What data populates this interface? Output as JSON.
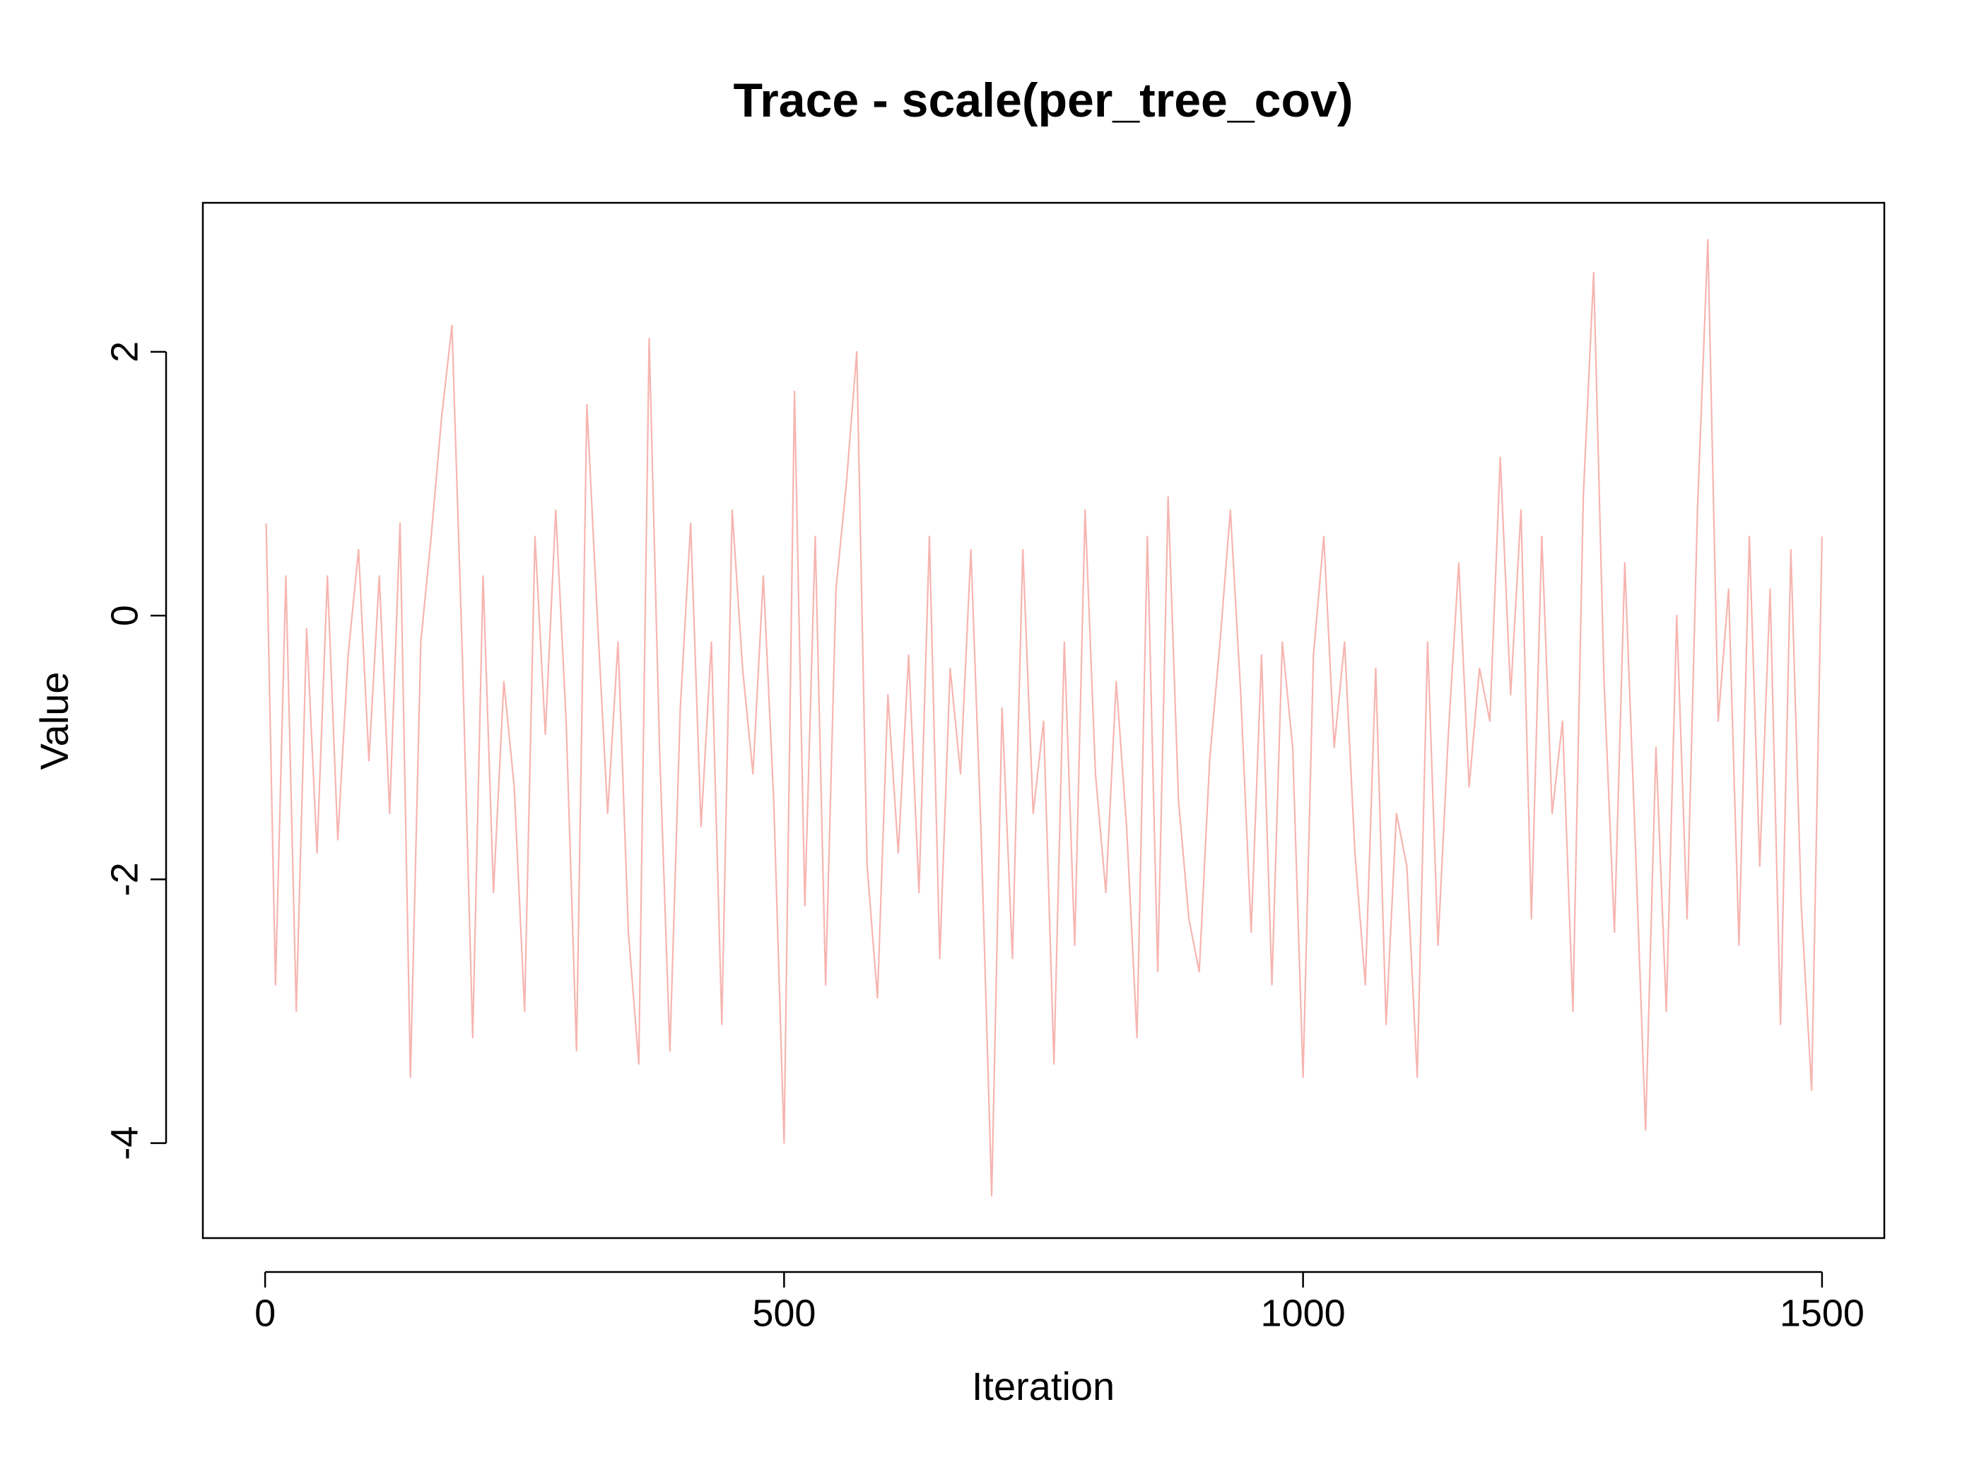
{
  "chart_data": {
    "type": "line",
    "title": "Trace - scale(per_tree_cov)",
    "x_label": "Iteration",
    "y_label": "Value",
    "x": [
      1,
      10,
      20,
      30,
      40,
      50,
      60,
      70,
      80,
      90,
      100,
      110,
      120,
      130,
      140,
      150,
      160,
      170,
      180,
      190,
      200,
      210,
      220,
      230,
      240,
      250,
      260,
      270,
      280,
      290,
      300,
      310,
      320,
      330,
      340,
      350,
      360,
      370,
      380,
      390,
      400,
      410,
      420,
      430,
      440,
      450,
      460,
      470,
      480,
      490,
      500,
      510,
      520,
      530,
      540,
      550,
      560,
      570,
      580,
      590,
      600,
      610,
      620,
      630,
      640,
      650,
      660,
      670,
      680,
      690,
      700,
      710,
      720,
      730,
      740,
      750,
      760,
      770,
      780,
      790,
      800,
      810,
      820,
      830,
      840,
      850,
      860,
      870,
      880,
      890,
      900,
      910,
      920,
      930,
      940,
      950,
      960,
      970,
      980,
      990,
      1000,
      1010,
      1020,
      1030,
      1040,
      1050,
      1060,
      1070,
      1080,
      1090,
      1100,
      1110,
      1120,
      1130,
      1140,
      1150,
      1160,
      1170,
      1180,
      1190,
      1200,
      1210,
      1220,
      1230,
      1240,
      1250,
      1260,
      1270,
      1280,
      1290,
      1300,
      1310,
      1320,
      1330,
      1340,
      1350,
      1360,
      1370,
      1380,
      1390,
      1400,
      1410,
      1420,
      1430,
      1440,
      1450,
      1460,
      1470,
      1480,
      1490,
      1500
    ],
    "series": [
      {
        "name": "scale(per_tree_cov)",
        "color": "#f6b5b0",
        "values": [
          0.7,
          -2.8,
          0.3,
          -3.0,
          -0.1,
          -1.8,
          0.3,
          -1.7,
          -0.3,
          0.5,
          -1.1,
          0.3,
          -1.5,
          0.7,
          -3.5,
          -0.2,
          0.6,
          1.5,
          2.2,
          -0.3,
          -3.2,
          0.3,
          -2.1,
          -0.5,
          -1.3,
          -3.0,
          0.6,
          -0.9,
          0.8,
          -0.8,
          -3.3,
          1.6,
          0.0,
          -1.5,
          -0.2,
          -2.4,
          -3.4,
          2.1,
          -1.0,
          -3.3,
          -0.7,
          0.7,
          -1.6,
          -0.2,
          -3.1,
          0.8,
          -0.4,
          -1.2,
          0.3,
          -1.4,
          -4.0,
          1.7,
          -2.2,
          0.6,
          -2.8,
          0.2,
          1.0,
          2.0,
          -1.9,
          -2.9,
          -0.6,
          -1.8,
          -0.3,
          -2.1,
          0.6,
          -2.6,
          -0.4,
          -1.2,
          0.5,
          -1.7,
          -4.4,
          -0.7,
          -2.6,
          0.5,
          -1.5,
          -0.8,
          -3.4,
          -0.2,
          -2.5,
          0.8,
          -1.2,
          -2.1,
          -0.5,
          -1.6,
          -3.2,
          0.6,
          -2.7,
          0.9,
          -1.4,
          -2.3,
          -2.7,
          -1.1,
          -0.2,
          0.8,
          -0.6,
          -2.4,
          -0.3,
          -2.8,
          -0.2,
          -1.0,
          -3.5,
          -0.3,
          0.6,
          -1.0,
          -0.2,
          -1.8,
          -2.8,
          -0.4,
          -3.1,
          -1.5,
          -1.9,
          -3.5,
          -0.2,
          -2.5,
          -0.9,
          0.4,
          -1.3,
          -0.4,
          -0.8,
          1.2,
          -0.6,
          0.8,
          -2.3,
          0.6,
          -1.5,
          -0.8,
          -3.0,
          0.9,
          2.6,
          -0.5,
          -2.4,
          0.4,
          -1.7,
          -3.9,
          -1.0,
          -3.0,
          0.0,
          -2.3,
          0.8,
          2.85,
          -0.8,
          0.2,
          -2.5,
          0.6,
          -1.9,
          0.2,
          -3.1,
          0.5,
          -2.2,
          -3.6,
          0.6
        ]
      }
    ],
    "xlim": [
      -60,
      1560
    ],
    "ylim": [
      -4.72,
      3.13
    ],
    "xticks": [
      0,
      500,
      1000,
      1500
    ],
    "yticks": [
      -4,
      -2,
      0,
      2
    ]
  }
}
